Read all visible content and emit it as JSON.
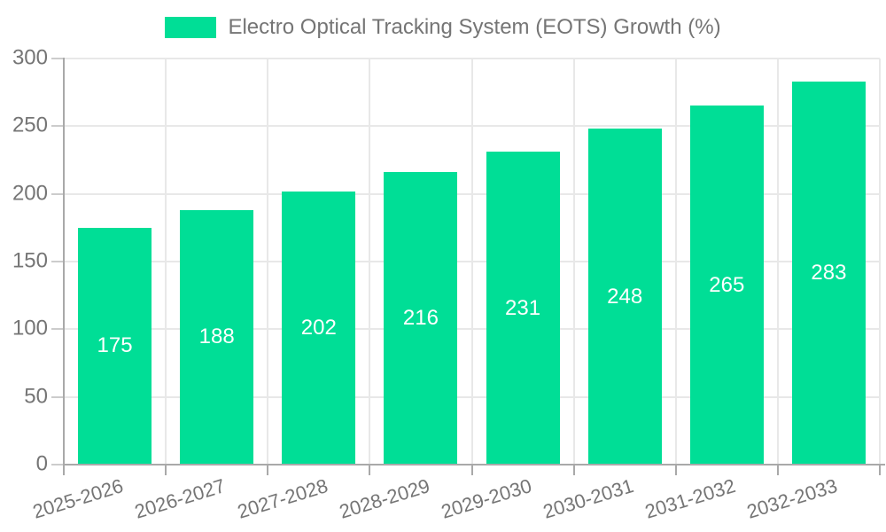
{
  "chart_data": {
    "type": "bar",
    "title": "Electro Optical Tracking System (EOTS) Growth (%)",
    "legend": {
      "label": "Electro Optical Tracking System (EOTS) Growth (%)",
      "position": "top-center"
    },
    "categories": [
      "2025-2026",
      "2026-2027",
      "2027-2028",
      "2028-2029",
      "2029-2030",
      "2030-2031",
      "2031-2032",
      "2032-2033"
    ],
    "values": [
      175,
      188,
      202,
      216,
      231,
      248,
      265,
      283
    ],
    "xlabel": "",
    "ylabel": "",
    "ylim": [
      0,
      300
    ],
    "yticks": [
      0,
      50,
      100,
      150,
      200,
      250,
      300
    ],
    "grid": true,
    "bar_labels_shown": true,
    "x_tick_rotation_deg": -17
  },
  "colors": {
    "bar": "#00de96",
    "bar_label_text": "#ffffff",
    "axis_text": "#757575",
    "axis_line": "#a9a9a9",
    "gridline": "#e8e8e8",
    "background": "#ffffff"
  }
}
